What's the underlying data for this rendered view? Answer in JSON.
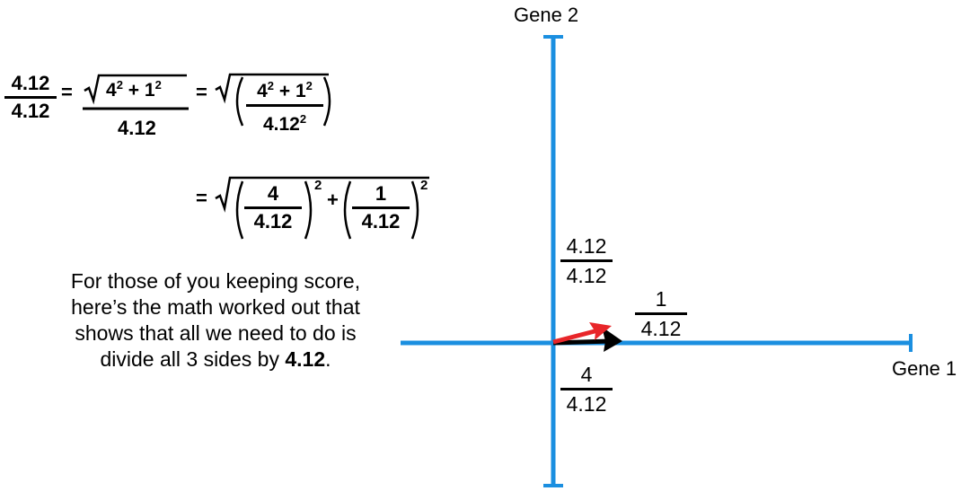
{
  "axes": {
    "x_label": "Gene 1",
    "y_label": "Gene 2",
    "axis_color": "#1b8fe0"
  },
  "equation": {
    "lhs": {
      "num": "4.12",
      "den": "4.12"
    },
    "eq1": "=",
    "sqrt_terms": {
      "a": "4",
      "a_exp": "2",
      "plus": "+",
      "b": "1",
      "b_exp": "2"
    },
    "mid_den": "4.12",
    "eq2": "=",
    "right": {
      "num_a": "4",
      "num_a_exp": "2",
      "plus": "+",
      "num_b": "1",
      "num_b_exp": "2",
      "den": "4.12",
      "den_exp": "2"
    },
    "eq3": "=",
    "line2": {
      "frac1": {
        "num": "4",
        "den": "4.12"
      },
      "exp1": "2",
      "plus": "+",
      "frac2": {
        "num": "1",
        "den": "4.12"
      },
      "exp2": "2"
    }
  },
  "paragraph": {
    "line1": "For those of you keeping score,",
    "line2": "here’s the math worked out that",
    "line3": "shows that all we need to do is",
    "line4_prefix": "divide all 3 sides by ",
    "line4_bold": "4.12",
    "line4_suffix": "."
  },
  "axis_fractions": {
    "hypotenuse": {
      "num": "4.12",
      "den": "4.12"
    },
    "vertical": {
      "num": "1",
      "den": "4.12"
    },
    "horizontal": {
      "num": "4",
      "den": "4.12"
    }
  },
  "colors": {
    "red_vector": "#e8262a",
    "black_vector": "#000000"
  }
}
